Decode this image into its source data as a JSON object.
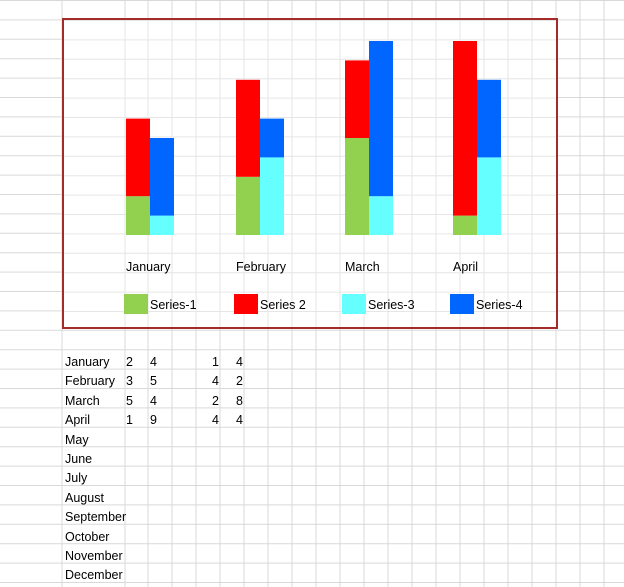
{
  "colors": {
    "series_1": "#92d050",
    "series_2": "#ff0000",
    "series_3": "#66ffff",
    "series_4": "#0066ff",
    "chart_border": "#a52a2a",
    "grid": "#d9d9d9"
  },
  "chart_data": {
    "type": "bar",
    "stacked_pairs": true,
    "categories": [
      "January",
      "February",
      "March",
      "April"
    ],
    "series": [
      {
        "name": "Series-1",
        "values": [
          2,
          3,
          5,
          1
        ],
        "stack": "left"
      },
      {
        "name": "Series 2",
        "values": [
          4,
          5,
          4,
          9
        ],
        "stack": "left"
      },
      {
        "name": "Series-3",
        "values": [
          1,
          4,
          2,
          4
        ],
        "stack": "right"
      },
      {
        "name": "Series-4",
        "values": [
          4,
          2,
          8,
          4
        ],
        "stack": "right"
      }
    ],
    "ylim": [
      0,
      10
    ],
    "legend_position": "bottom",
    "title": "",
    "xlabel": "",
    "ylabel": ""
  },
  "sheet": {
    "rows": [
      {
        "label": "January",
        "a": "2",
        "b": "4",
        "c": "1",
        "d": "4"
      },
      {
        "label": "February",
        "a": "3",
        "b": "5",
        "c": "4",
        "d": "2"
      },
      {
        "label": "March",
        "a": "5",
        "b": "4",
        "c": "2",
        "d": "8"
      },
      {
        "label": "April",
        "a": "1",
        "b": "9",
        "c": "4",
        "d": "4"
      },
      {
        "label": "May",
        "a": "",
        "b": "",
        "c": "",
        "d": ""
      },
      {
        "label": "June",
        "a": "",
        "b": "",
        "c": "",
        "d": ""
      },
      {
        "label": "July",
        "a": "",
        "b": "",
        "c": "",
        "d": ""
      },
      {
        "label": "August",
        "a": "",
        "b": "",
        "c": "",
        "d": ""
      },
      {
        "label": "September",
        "a": "",
        "b": "",
        "c": "",
        "d": ""
      },
      {
        "label": "October",
        "a": "",
        "b": "",
        "c": "",
        "d": ""
      },
      {
        "label": "November",
        "a": "",
        "b": "",
        "c": "",
        "d": ""
      },
      {
        "label": "December",
        "a": "",
        "b": "",
        "c": "",
        "d": ""
      }
    ]
  }
}
